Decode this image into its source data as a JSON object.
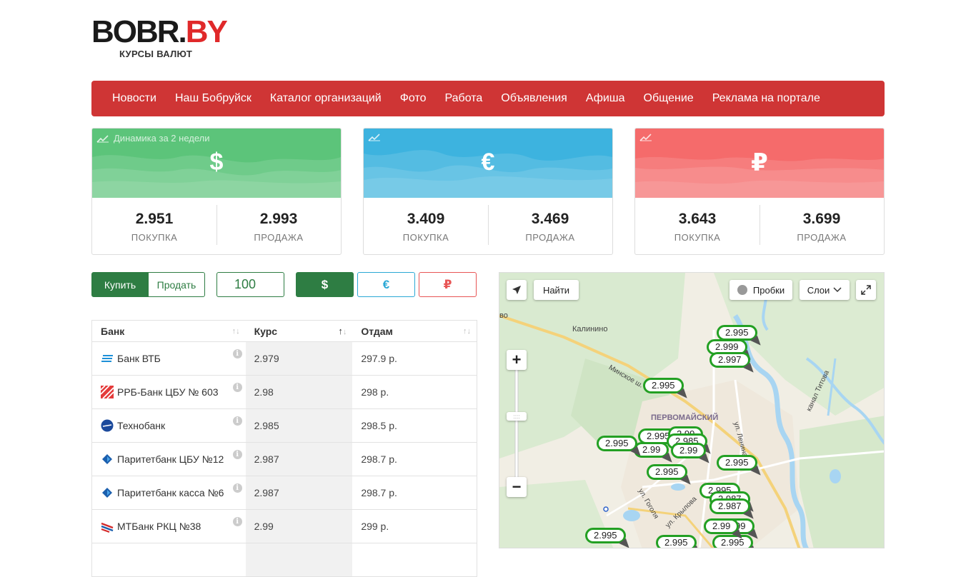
{
  "logo": {
    "word_main": "BOBR.",
    "word_accent": "BY",
    "subtitle": "КУРСЫ ВАЛЮТ"
  },
  "nav": [
    "Новости",
    "Наш Бобруйск",
    "Каталог организаций",
    "Фото",
    "Работа",
    "Объявления",
    "Афиша",
    "Общение",
    "Реклама на портале"
  ],
  "cards": [
    {
      "symbol": "$",
      "dynamics_label": "Динамика за 2 недели",
      "buy": "2.951",
      "sell": "2.993",
      "buy_label": "ПОКУПКА",
      "sell_label": "ПРОДАЖА",
      "color": "#5cc47a"
    },
    {
      "symbol": "€",
      "dynamics_label": "",
      "buy": "3.409",
      "sell": "3.469",
      "buy_label": "ПОКУПКА",
      "sell_label": "ПРОДАЖА",
      "color": "#3db3df"
    },
    {
      "symbol": "₽",
      "dynamics_label": "",
      "buy": "3.643",
      "sell": "3.699",
      "buy_label": "ПОКУПКА",
      "sell_label": "ПРОДАЖА",
      "color": "#f56b6b"
    }
  ],
  "controls": {
    "buy_label": "Купить",
    "sell_label": "Продать",
    "amount": "100",
    "currencies": {
      "usd": "$",
      "eur": "€",
      "rub": "₽"
    }
  },
  "table": {
    "headers": {
      "bank": "Банк",
      "rate": "Курс",
      "give": "Отдам"
    },
    "rows": [
      {
        "bank": "Банк ВТБ",
        "rate": "2.979",
        "give": "297.9 р."
      },
      {
        "bank": "РРБ-Банк ЦБУ № 603",
        "rate": "2.98",
        "give": "298 р."
      },
      {
        "bank": "Технобанк",
        "rate": "2.985",
        "give": "298.5 р."
      },
      {
        "bank": "Паритетбанк ЦБУ №12",
        "rate": "2.987",
        "give": "298.7 р."
      },
      {
        "bank": "Паритетбанк касса №6",
        "rate": "2.987",
        "give": "298.7 р."
      },
      {
        "bank": "МТБанк РКЦ №38",
        "rate": "2.99",
        "give": "299 р."
      },
      {
        "bank": "",
        "rate": "",
        "give": ""
      }
    ]
  },
  "map": {
    "find_label": "Найти",
    "traffic_label": "Пробки",
    "layers_label": "Слои",
    "labels": {
      "kalinino": "Калинино",
      "pervomaisky": "ПЕРВОМАЙСКИЙ",
      "minskoe": "Минское ш.",
      "kanal": "канал Титова",
      "lenina": "ул. Ленина",
      "gogolya": "ул. Гоголя",
      "krylova": "ул. Крылова",
      "vo": "во"
    },
    "markers": [
      "2.995",
      "2.999",
      "2.997",
      "2.995",
      "2.995",
      "2.99",
      "2.99",
      "2.985",
      "2.99",
      "2.995",
      "2.995",
      "2.995",
      "2.995",
      "2.987",
      "2.987",
      "2.999",
      "2.995",
      "2.995",
      "2.995",
      "2.99"
    ]
  }
}
